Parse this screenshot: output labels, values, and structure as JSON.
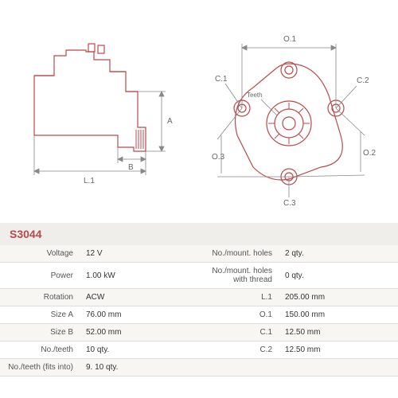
{
  "part_code": "S3044",
  "colors": {
    "line": "#b84a4a",
    "dim": "#888888",
    "text": "#666666",
    "extension": "#b84a4a",
    "bg_alt": "#f7f6f2",
    "bg": "#ffffff"
  },
  "drawing_left": {
    "labels": {
      "L1": "L.1",
      "A": "A",
      "B": "B"
    },
    "stroke_width": 1.2
  },
  "drawing_right": {
    "labels": {
      "O1": "O.1",
      "O2": "O.2",
      "O3": "O.3",
      "C1": "C.1",
      "C2": "C.2",
      "C3": "C.3",
      "Teeth": "Teeth"
    },
    "stroke_width": 1.2
  },
  "specs": [
    {
      "l1": "Voltage",
      "v1": "12 V",
      "l2": "No./mount. holes",
      "v2": "2 qty."
    },
    {
      "l1": "Power",
      "v1": "1.00 kW",
      "l2": "No./mount. holes with thread",
      "v2": "0 qty."
    },
    {
      "l1": "Rotation",
      "v1": "ACW",
      "l2": "L.1",
      "v2": "205.00 mm"
    },
    {
      "l1": "Size A",
      "v1": "76.00 mm",
      "l2": "O.1",
      "v2": "150.00 mm"
    },
    {
      "l1": "Size B",
      "v1": "52.00 mm",
      "l2": "C.1",
      "v2": "12.50 mm"
    },
    {
      "l1": "No./teeth",
      "v1": "10 qty.",
      "l2": "C.2",
      "v2": "12.50 mm"
    },
    {
      "l1": "No./teeth (fits into)",
      "v1": "9. 10 qty.",
      "l2": "",
      "v2": ""
    }
  ]
}
